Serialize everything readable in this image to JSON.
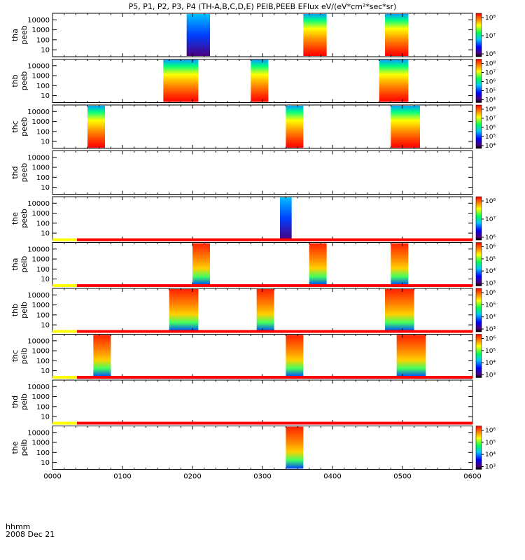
{
  "title": "P5, P1, P2, P3, P4 (TH-A,B,C,D,E) PEIB,PEEB EFlux eV/(eV*cm²*sec*sr)",
  "bottom_axis": {
    "ticks": [
      "0000",
      "0100",
      "0200",
      "0300",
      "0400",
      "0500",
      "0600"
    ],
    "row_label": "hhmm",
    "date_label": "2008 Dec 21"
  },
  "colors": {
    "mode_bar_yellow": "#ffff00",
    "mode_bar_red": "#ff0000",
    "frame": "#000000"
  },
  "chart_data": {
    "type": "heatmap",
    "x_unit": "hhmm UT, 2008 Dec 21",
    "x_range": [
      "0000",
      "0600"
    ],
    "y_scale": "log",
    "y_ticks": [
      "10",
      "100",
      "1000",
      "10000"
    ],
    "panels": [
      {
        "probe": "tha",
        "product": "peeb",
        "label": [
          "tha",
          "peeb"
        ],
        "intervals": [
          [
            "0155",
            "0215"
          ],
          [
            "0335",
            "0355"
          ],
          [
            "0445",
            "0505"
          ]
        ],
        "colorbar": [
          "10⁸",
          "10⁷",
          "10⁶"
        ]
      },
      {
        "probe": "thb",
        "product": "peeb",
        "label": [
          "thb",
          "peeb"
        ],
        "intervals": [
          [
            "0135",
            "0205"
          ],
          [
            "0250",
            "0305"
          ],
          [
            "0440",
            "0505"
          ]
        ],
        "colorbar": [
          "10⁸",
          "10⁷",
          "10⁶",
          "10⁵",
          "10⁴"
        ]
      },
      {
        "probe": "thc",
        "product": "peeb",
        "label": [
          "thc",
          "peeb"
        ],
        "intervals": [
          [
            "0030",
            "0045"
          ],
          [
            "0320",
            "0335"
          ],
          [
            "0450",
            "0515"
          ]
        ],
        "colorbar": [
          "10⁸",
          "10⁷",
          "10⁶",
          "10⁵",
          "10⁴"
        ]
      },
      {
        "probe": "thd",
        "product": "peeb",
        "label": [
          "thd",
          "peeb"
        ],
        "intervals": [],
        "colorbar": []
      },
      {
        "probe": "the",
        "product": "peeb",
        "label": [
          "the",
          "peeb"
        ],
        "intervals": [
          [
            "0315",
            "0325"
          ]
        ],
        "colorbar": [
          "10⁸",
          "10⁷",
          "10⁶"
        ]
      },
      {
        "probe": "tha",
        "product": "peib",
        "label": [
          "tha",
          "peib"
        ],
        "intervals": [
          [
            "0200",
            "0215"
          ],
          [
            "0340",
            "0355"
          ],
          [
            "0450",
            "0505"
          ]
        ],
        "colorbar": [
          "10⁶",
          "10⁵",
          "10⁴",
          "10³"
        ]
      },
      {
        "probe": "thb",
        "product": "peib",
        "label": [
          "thb",
          "peib"
        ],
        "intervals": [
          [
            "0140",
            "0205"
          ],
          [
            "0255",
            "0310"
          ],
          [
            "0445",
            "0510"
          ]
        ],
        "colorbar": [
          "10⁶",
          "10⁵",
          "10⁴",
          "10³"
        ]
      },
      {
        "probe": "thc",
        "product": "peib",
        "label": [
          "thc",
          "peib"
        ],
        "intervals": [
          [
            "0035",
            "0050"
          ],
          [
            "0320",
            "0335"
          ],
          [
            "0455",
            "0520"
          ]
        ],
        "colorbar": [
          "10⁶",
          "10⁵",
          "10⁴",
          "10³"
        ]
      },
      {
        "probe": "thd",
        "product": "peib",
        "label": [
          "thd",
          "peib"
        ],
        "intervals": [],
        "colorbar": []
      },
      {
        "probe": "the",
        "product": "peib",
        "label": [
          "the",
          "peib"
        ],
        "intervals": [
          [
            "0320",
            "0335"
          ]
        ],
        "colorbar": [
          "10⁶",
          "10⁵",
          "10⁴",
          "10³"
        ]
      }
    ]
  }
}
